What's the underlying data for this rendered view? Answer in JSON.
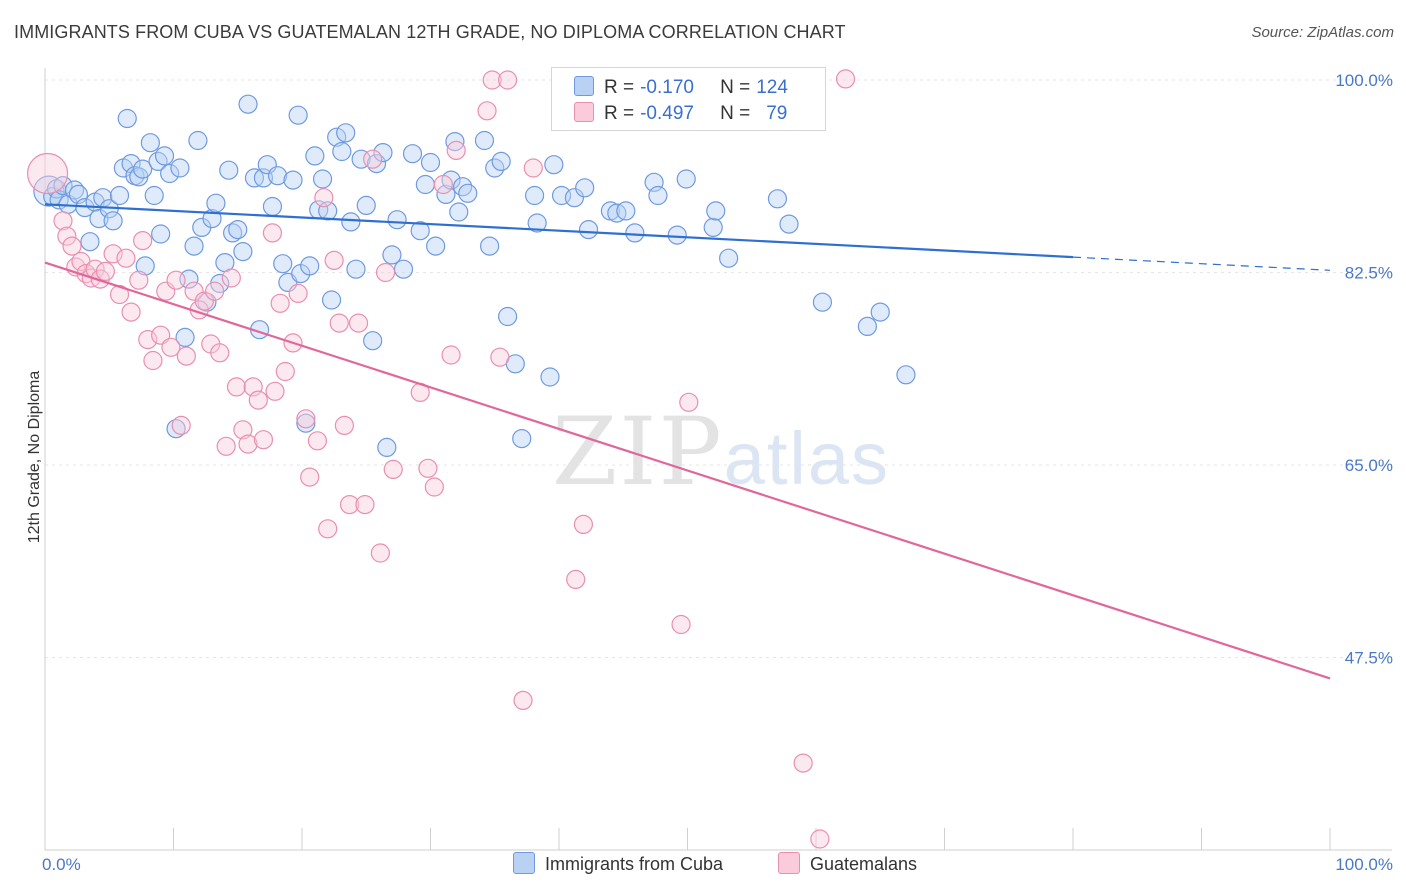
{
  "title": "IMMIGRANTS FROM CUBA VS GUATEMALAN 12TH GRADE, NO DIPLOMA CORRELATION CHART",
  "source": "Source: ZipAtlas.com",
  "watermark": {
    "zip": "ZIP",
    "atlas": "atlas"
  },
  "legend": {
    "rows": [
      {
        "r_label": "R =",
        "r_value": "-0.170",
        "n_label": "N =",
        "n_value": "124",
        "color": "#a9c8f2"
      },
      {
        "r_label": "R =",
        "r_value": "-0.497",
        "n_label": "N =",
        "n_value": "79",
        "color": "#f7bcd0"
      }
    ]
  },
  "bottom_legend": [
    {
      "label": "Immigrants from Cuba",
      "color": "#a9c8f2"
    },
    {
      "label": "Guatemalans",
      "color": "#f7bcd0"
    }
  ],
  "colors": {
    "blue_stroke": "#6f9ae0",
    "blue_fill": "#b9d2f4",
    "blue_line": "#2f6fd0",
    "pink_stroke": "#e98fb0",
    "pink_fill": "#f9cbdb",
    "pink_line": "#e0679a",
    "grid": "#e6e6e6"
  },
  "chart_data": {
    "type": "scatter",
    "ylabel": "12th Grade, No Diploma",
    "xlim": [
      0,
      100
    ],
    "ylim": [
      30,
      100
    ],
    "x_tick_labels": [
      {
        "value": 0,
        "label": "0.0%"
      },
      {
        "value": 100,
        "label": "100.0%"
      }
    ],
    "y_tick_labels": [
      {
        "value": 100,
        "label": "100.0%"
      },
      {
        "value": 82.5,
        "label": "82.5%"
      },
      {
        "value": 65,
        "label": "65.0%"
      },
      {
        "value": 47.5,
        "label": "47.5%"
      }
    ],
    "trend_lines": [
      {
        "series": "Immigrants from Cuba",
        "x": [
          0,
          80
        ],
        "y": [
          88.7,
          83.9
        ],
        "dashed_to": [
          100,
          82.7
        ]
      },
      {
        "series": "Guatemalans",
        "x": [
          0,
          100
        ],
        "y": [
          83.4,
          45.6
        ]
      }
    ],
    "series": [
      {
        "name": "Immigrants from Cuba",
        "points": [
          [
            0.3,
            89.9
          ],
          [
            0.6,
            89.4
          ],
          [
            0.9,
            90.1
          ],
          [
            1.1,
            89.1
          ],
          [
            1.4,
            90.4
          ],
          [
            1.8,
            88.7
          ],
          [
            2.3,
            90.0
          ],
          [
            2.6,
            89.6
          ],
          [
            3.1,
            88.4
          ],
          [
            3.5,
            85.3
          ],
          [
            3.9,
            88.9
          ],
          [
            4.2,
            87.4
          ],
          [
            4.5,
            89.3
          ],
          [
            5.0,
            88.3
          ],
          [
            5.3,
            87.2
          ],
          [
            5.8,
            89.5
          ],
          [
            6.1,
            92.0
          ],
          [
            6.4,
            96.5
          ],
          [
            6.7,
            92.4
          ],
          [
            7.0,
            91.3
          ],
          [
            7.3,
            91.2
          ],
          [
            7.6,
            91.9
          ],
          [
            7.8,
            83.1
          ],
          [
            8.2,
            94.3
          ],
          [
            8.5,
            89.5
          ],
          [
            8.8,
            92.6
          ],
          [
            9.0,
            86.0
          ],
          [
            9.3,
            93.1
          ],
          [
            9.7,
            91.5
          ],
          [
            10.2,
            68.3
          ],
          [
            10.5,
            92.0
          ],
          [
            10.9,
            76.6
          ],
          [
            11.2,
            81.9
          ],
          [
            11.6,
            84.9
          ],
          [
            11.9,
            94.5
          ],
          [
            12.2,
            86.6
          ],
          [
            12.6,
            79.8
          ],
          [
            13.0,
            87.4
          ],
          [
            13.3,
            88.8
          ],
          [
            13.6,
            81.5
          ],
          [
            14.0,
            83.4
          ],
          [
            14.3,
            91.8
          ],
          [
            14.6,
            86.1
          ],
          [
            15.0,
            86.4
          ],
          [
            15.4,
            84.4
          ],
          [
            15.8,
            97.8
          ],
          [
            16.3,
            91.1
          ],
          [
            16.7,
            77.3
          ],
          [
            17.0,
            91.1
          ],
          [
            17.3,
            92.3
          ],
          [
            17.7,
            88.5
          ],
          [
            18.1,
            91.3
          ],
          [
            18.5,
            83.3
          ],
          [
            18.9,
            81.6
          ],
          [
            19.3,
            90.9
          ],
          [
            19.7,
            96.8
          ],
          [
            19.9,
            82.4
          ],
          [
            20.3,
            68.8
          ],
          [
            20.6,
            83.1
          ],
          [
            21.0,
            93.1
          ],
          [
            21.3,
            88.2
          ],
          [
            21.6,
            91.0
          ],
          [
            22.0,
            88.1
          ],
          [
            22.3,
            80.0
          ],
          [
            22.7,
            94.8
          ],
          [
            23.1,
            93.5
          ],
          [
            23.4,
            95.2
          ],
          [
            23.8,
            87.1
          ],
          [
            24.2,
            82.8
          ],
          [
            24.6,
            92.8
          ],
          [
            25.0,
            88.6
          ],
          [
            25.5,
            76.3
          ],
          [
            25.8,
            92.4
          ],
          [
            26.3,
            93.4
          ],
          [
            26.6,
            66.6
          ],
          [
            27.0,
            84.1
          ],
          [
            27.4,
            87.3
          ],
          [
            27.9,
            82.8
          ],
          [
            28.6,
            93.3
          ],
          [
            29.2,
            86.3
          ],
          [
            29.6,
            90.5
          ],
          [
            30.0,
            92.5
          ],
          [
            30.4,
            84.9
          ],
          [
            31.2,
            89.6
          ],
          [
            31.6,
            90.9
          ],
          [
            31.9,
            94.4
          ],
          [
            32.2,
            88.0
          ],
          [
            32.5,
            90.3
          ],
          [
            32.9,
            89.7
          ],
          [
            34.2,
            94.5
          ],
          [
            34.6,
            84.9
          ],
          [
            35.0,
            92.0
          ],
          [
            35.5,
            92.6
          ],
          [
            36.0,
            78.5
          ],
          [
            36.6,
            74.2
          ],
          [
            37.1,
            67.4
          ],
          [
            38.1,
            89.5
          ],
          [
            38.3,
            87.0
          ],
          [
            39.3,
            73.0
          ],
          [
            39.6,
            92.3
          ],
          [
            40.2,
            89.5
          ],
          [
            41.2,
            89.3
          ],
          [
            42.0,
            90.2
          ],
          [
            42.3,
            86.4
          ],
          [
            44.0,
            88.1
          ],
          [
            44.5,
            87.9
          ],
          [
            45.2,
            88.1
          ],
          [
            45.9,
            86.1
          ],
          [
            47.4,
            90.7
          ],
          [
            47.7,
            89.5
          ],
          [
            49.2,
            85.9
          ],
          [
            49.9,
            91.0
          ],
          [
            52.0,
            86.6
          ],
          [
            52.2,
            88.1
          ],
          [
            53.2,
            83.8
          ],
          [
            57.0,
            89.2
          ],
          [
            57.9,
            86.9
          ],
          [
            60.5,
            79.8
          ],
          [
            64.0,
            77.6
          ],
          [
            65.0,
            78.9
          ],
          [
            67.0,
            73.2
          ]
        ]
      },
      {
        "name": "Guatemalans",
        "points": [
          [
            0.2,
            91.5
          ],
          [
            1.4,
            87.2
          ],
          [
            1.7,
            85.8
          ],
          [
            2.1,
            84.9
          ],
          [
            2.4,
            83.0
          ],
          [
            2.8,
            83.5
          ],
          [
            3.2,
            82.4
          ],
          [
            3.6,
            82.0
          ],
          [
            3.9,
            82.8
          ],
          [
            4.3,
            81.9
          ],
          [
            4.7,
            82.6
          ],
          [
            5.3,
            84.2
          ],
          [
            5.8,
            80.5
          ],
          [
            6.3,
            83.8
          ],
          [
            6.7,
            78.9
          ],
          [
            7.3,
            81.8
          ],
          [
            7.6,
            85.4
          ],
          [
            8.0,
            76.4
          ],
          [
            8.4,
            74.5
          ],
          [
            9.0,
            76.8
          ],
          [
            9.4,
            80.8
          ],
          [
            9.8,
            75.7
          ],
          [
            10.2,
            81.8
          ],
          [
            10.6,
            68.6
          ],
          [
            11.0,
            74.9
          ],
          [
            11.6,
            80.8
          ],
          [
            12.0,
            79.1
          ],
          [
            12.4,
            79.9
          ],
          [
            12.9,
            76.0
          ],
          [
            13.2,
            80.8
          ],
          [
            13.6,
            75.2
          ],
          [
            14.1,
            66.7
          ],
          [
            14.5,
            82.0
          ],
          [
            14.9,
            72.1
          ],
          [
            15.4,
            68.2
          ],
          [
            15.8,
            66.9
          ],
          [
            16.2,
            72.1
          ],
          [
            16.6,
            70.9
          ],
          [
            17.0,
            67.3
          ],
          [
            17.7,
            86.1
          ],
          [
            17.9,
            71.7
          ],
          [
            18.3,
            79.7
          ],
          [
            18.7,
            73.5
          ],
          [
            19.3,
            76.1
          ],
          [
            19.7,
            80.6
          ],
          [
            20.3,
            69.2
          ],
          [
            20.6,
            63.9
          ],
          [
            21.2,
            67.2
          ],
          [
            21.7,
            89.3
          ],
          [
            22.0,
            59.2
          ],
          [
            22.5,
            83.6
          ],
          [
            22.9,
            77.9
          ],
          [
            23.3,
            68.6
          ],
          [
            23.7,
            61.4
          ],
          [
            24.4,
            77.9
          ],
          [
            24.9,
            61.4
          ],
          [
            25.5,
            92.8
          ],
          [
            26.1,
            57.0
          ],
          [
            26.5,
            82.5
          ],
          [
            27.1,
            64.6
          ],
          [
            29.2,
            71.6
          ],
          [
            29.8,
            64.7
          ],
          [
            30.3,
            63.0
          ],
          [
            31.0,
            90.5
          ],
          [
            31.6,
            75.0
          ],
          [
            32.0,
            93.6
          ],
          [
            34.4,
            97.2
          ],
          [
            34.8,
            100.0
          ],
          [
            35.4,
            74.8
          ],
          [
            36.0,
            100.0
          ],
          [
            37.2,
            43.6
          ],
          [
            38.0,
            92.0
          ],
          [
            41.3,
            54.6
          ],
          [
            41.9,
            59.6
          ],
          [
            49.5,
            50.5
          ],
          [
            50.1,
            70.7
          ],
          [
            59.0,
            37.9
          ],
          [
            60.3,
            31.0
          ],
          [
            62.3,
            100.1
          ]
        ]
      }
    ]
  }
}
